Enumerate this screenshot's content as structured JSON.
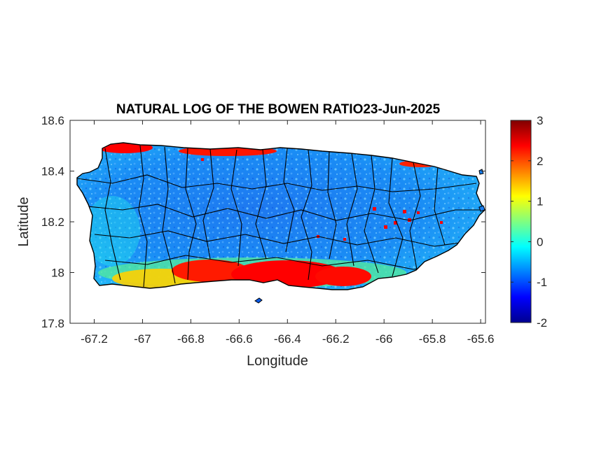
{
  "title": "NATURAL LOG OF THE BOWEN RATIO23-Jun-2025",
  "xlabel": "Longitude",
  "ylabel": "Latitude",
  "map": {
    "region": "Puerto Rico",
    "xlim": [
      -67.3,
      -65.58
    ],
    "ylim": [
      17.8,
      18.6
    ],
    "xticks": [
      -67.2,
      -67,
      -66.8,
      -66.6,
      -66.4,
      -66.2,
      -66,
      -65.8,
      -65.6
    ],
    "xtick_labels": [
      "-67.2",
      "-67",
      "-66.8",
      "-66.6",
      "-66.4",
      "-66.2",
      "-66",
      "-65.8",
      "-65.6"
    ],
    "yticks": [
      17.8,
      18,
      18.2,
      18.4,
      18.6
    ],
    "ytick_labels": [
      "17.8",
      "18",
      "18.2",
      "18.4",
      "18.6"
    ],
    "colormap": "jet",
    "colors": {
      "dark_red": "#800000",
      "red": "#ff0000",
      "yellow": "#ffff00",
      "cyan": "#00ffff",
      "blue": "#0000ff",
      "dark_blue": "#00008f",
      "boundary": "#000000"
    }
  },
  "colorbar": {
    "range": [
      -2,
      3
    ],
    "ticks": [
      -2,
      -1,
      0,
      1,
      2,
      3
    ],
    "tick_labels": [
      "-2",
      "-1",
      "0",
      "1",
      "2",
      "3"
    ]
  }
}
